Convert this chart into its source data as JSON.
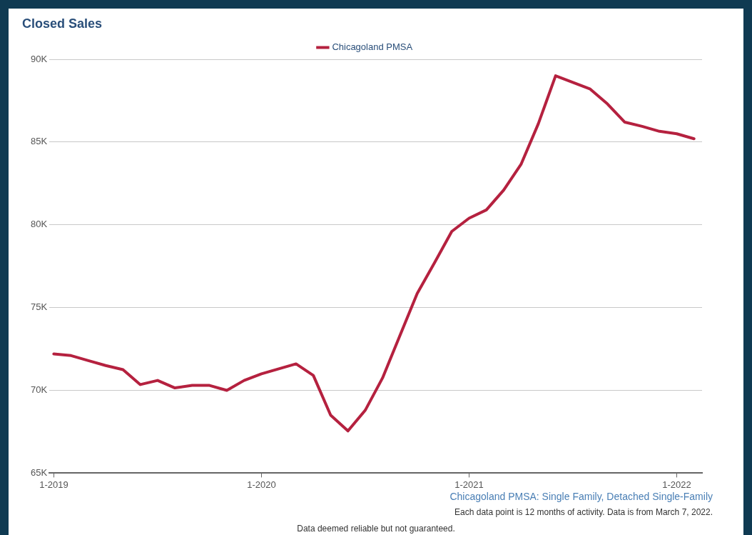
{
  "chart_data": {
    "type": "line",
    "title": "Closed Sales",
    "x": [
      "2019-01",
      "2019-02",
      "2019-03",
      "2019-04",
      "2019-05",
      "2019-06",
      "2019-07",
      "2019-08",
      "2019-09",
      "2019-10",
      "2019-11",
      "2019-12",
      "2020-01",
      "2020-02",
      "2020-03",
      "2020-04",
      "2020-05",
      "2020-06",
      "2020-07",
      "2020-08",
      "2020-09",
      "2020-10",
      "2020-11",
      "2020-12",
      "2021-01",
      "2021-02",
      "2021-03",
      "2021-04",
      "2021-05",
      "2021-06",
      "2021-07",
      "2021-08",
      "2021-09",
      "2021-10",
      "2021-11",
      "2021-12",
      "2022-01",
      "2022-02"
    ],
    "series": [
      {
        "name": "Chicagoland PMSA",
        "color": "#b5213f",
        "values": [
          72200,
          72100,
          71800,
          71500,
          71250,
          70350,
          70600,
          70150,
          70300,
          70300,
          70000,
          70600,
          71000,
          71300,
          71600,
          70900,
          68500,
          67550,
          68800,
          70750,
          73300,
          75850,
          77700,
          79600,
          80400,
          80900,
          82100,
          83650,
          86100,
          89000,
          88600,
          88200,
          87300,
          86200,
          85950,
          85650,
          85500,
          85200
        ]
      }
    ],
    "xlim": [
      "2018-12-24",
      "2022-02-14"
    ],
    "xticks": [
      {
        "value": "2019-01",
        "label": "1-2019"
      },
      {
        "value": "2020-01",
        "label": "1-2020"
      },
      {
        "value": "2021-01",
        "label": "1-2021"
      },
      {
        "value": "2022-01",
        "label": "1-2022"
      }
    ],
    "ylim": [
      65000,
      90000
    ],
    "yticks": [
      {
        "value": 65000,
        "label": "65K"
      },
      {
        "value": 70000,
        "label": "70K"
      },
      {
        "value": 75000,
        "label": "75K"
      },
      {
        "value": 80000,
        "label": "80K"
      },
      {
        "value": 85000,
        "label": "85K"
      },
      {
        "value": 90000,
        "label": "90K"
      }
    ],
    "grid": "y",
    "legend": "top",
    "marker": "none",
    "line_style": "solid",
    "annotations": [
      "Chicagoland PMSA: Single Family, Detached Single-Family",
      "Each data point is 12 months of activity. Data is from March 7, 2022.",
      "Data deemed reliable but not guaranteed."
    ]
  }
}
